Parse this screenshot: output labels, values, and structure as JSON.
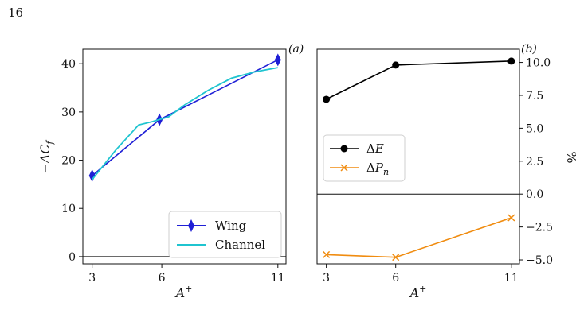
{
  "page_number": "16",
  "chart_data": [
    {
      "panel_label": "(a)",
      "type": "line",
      "xlabel": "A⁺",
      "ylabel": "−ΔC_f",
      "x_ticks": [
        3,
        6,
        11
      ],
      "y_ticks": [
        0,
        10,
        20,
        30,
        40
      ],
      "xlim": [
        2.6,
        11.35
      ],
      "ylim": [
        -1.5,
        43
      ],
      "zero_line": true,
      "legend": {
        "position": "lower-right",
        "entries": [
          "Wing",
          "Channel"
        ]
      },
      "series": [
        {
          "name": "Wing",
          "color": "#1f1fd6",
          "marker": "thin-diamond",
          "x": [
            3,
            5.9,
            11
          ],
          "y": [
            16.8,
            28.4,
            40.8
          ]
        },
        {
          "name": "Channel",
          "color": "#1fc4d0",
          "marker": "none",
          "x": [
            3,
            4,
            5,
            5.6,
            6.3,
            7,
            8,
            9,
            10,
            11
          ],
          "y": [
            16.0,
            22.0,
            27.3,
            28.0,
            29.0,
            31.5,
            34.5,
            37.0,
            38.3,
            39.2
          ]
        }
      ]
    },
    {
      "panel_label": "(b)",
      "type": "line",
      "xlabel": "A⁺",
      "ylabel": "%",
      "y_axis_side": "right",
      "x_ticks": [
        3,
        6,
        11
      ],
      "y_ticks": [
        -5.0,
        -2.5,
        0.0,
        2.5,
        5.0,
        7.5,
        10.0
      ],
      "y_tick_labels": [
        "−5.0",
        "−2.5",
        "0.0",
        "2.5",
        "5.0",
        "7.5",
        "10.0"
      ],
      "xlim": [
        2.6,
        11.35
      ],
      "ylim": [
        -5.3,
        11.0
      ],
      "zero_line": true,
      "legend": {
        "position": "center-left",
        "entries": [
          "ΔE",
          "ΔP_n"
        ]
      },
      "series": [
        {
          "name": "ΔE",
          "color": "#000000",
          "marker": "circle",
          "x": [
            3,
            6,
            11
          ],
          "y": [
            7.2,
            9.8,
            10.1
          ]
        },
        {
          "name": "ΔP_n",
          "color": "#f08c10",
          "marker": "x",
          "x": [
            3,
            6,
            11
          ],
          "y": [
            -4.6,
            -4.8,
            -1.8
          ]
        }
      ]
    }
  ]
}
